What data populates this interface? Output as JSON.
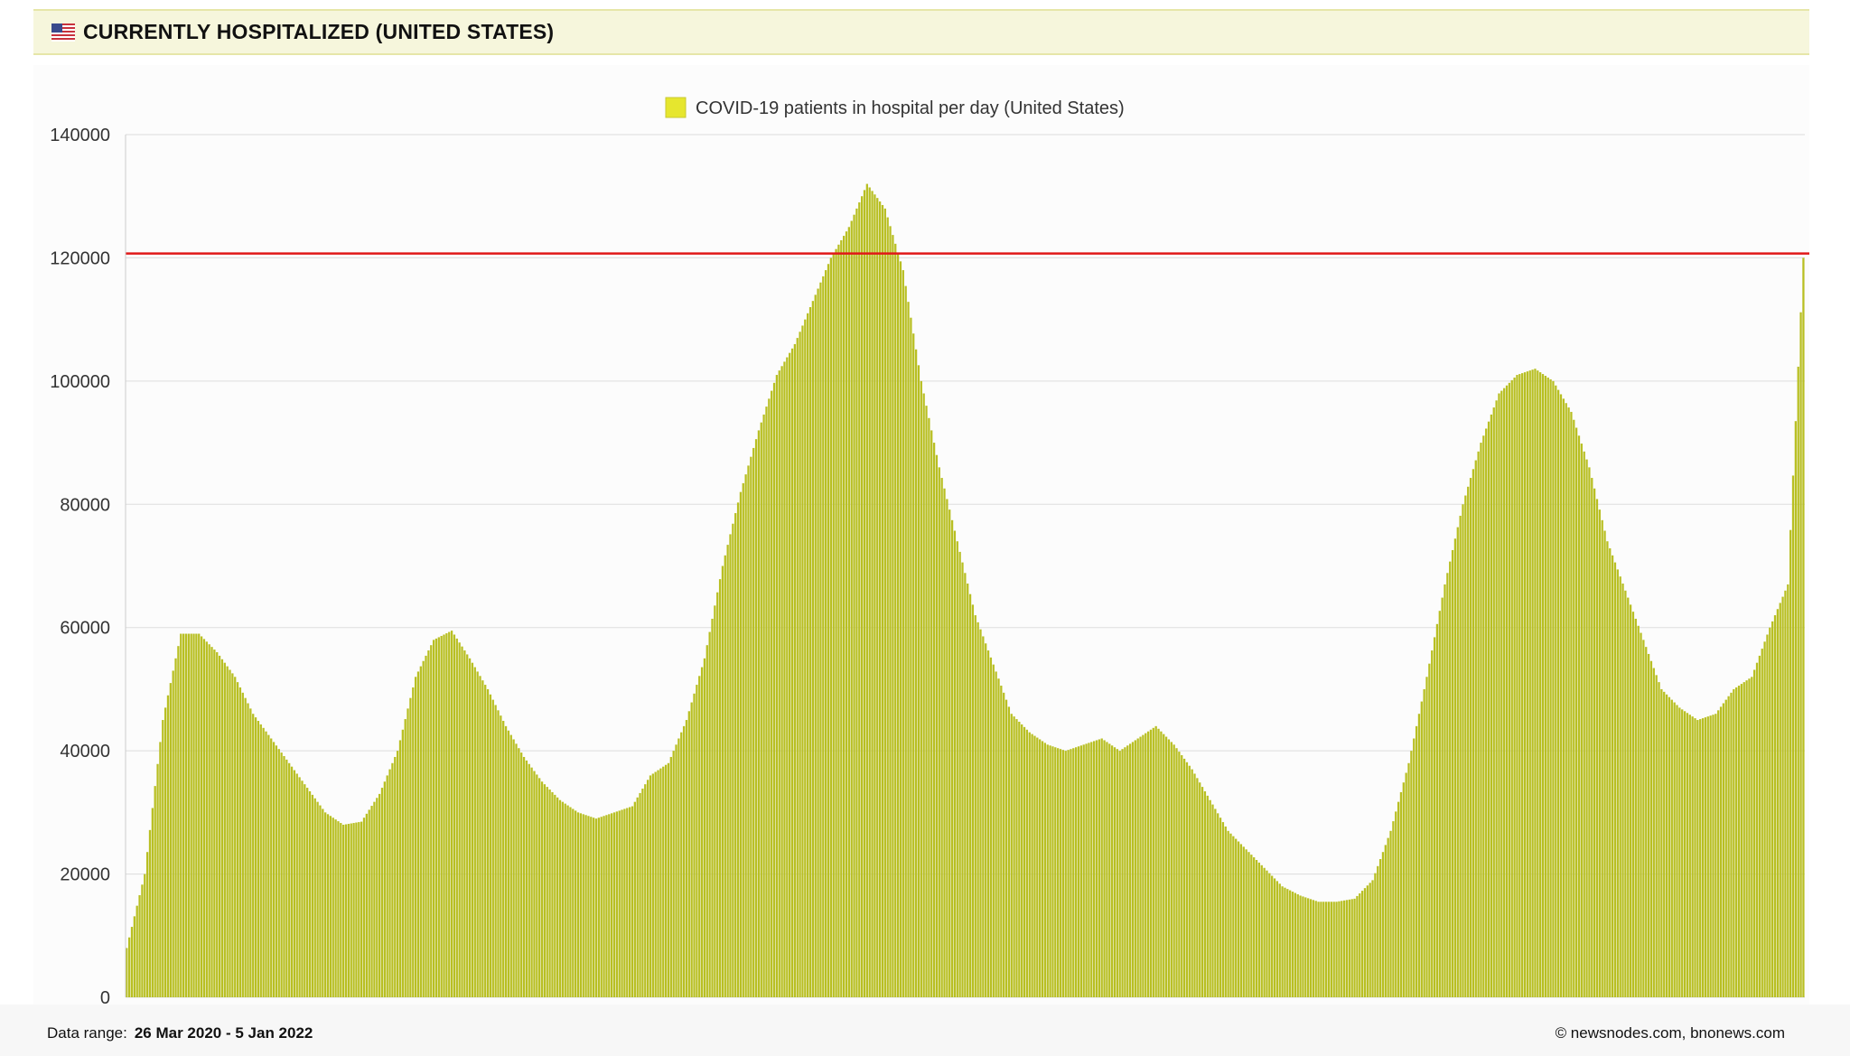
{
  "header": {
    "title": "CURRENTLY HOSPITALIZED (UNITED STATES)",
    "flag_icon": "us-flag-icon"
  },
  "footer": {
    "range_label": "Data range:",
    "range_value": "26 Mar 2020  -  5 Jan 2022",
    "copyright": "©  newsnodes.com, bnonews.com"
  },
  "colors": {
    "bar": "#b8bf22",
    "legend_swatch": "#e6e62e",
    "reference_line": "#e01818",
    "header_bg": "#f6f6dc"
  },
  "chart_data": {
    "type": "bar",
    "legend": "COVID-19 patients in hospital per day (United States)",
    "x_start": "2020-03-26",
    "x_end": "2022-01-05",
    "ylim": [
      0,
      140000
    ],
    "yticks": [
      0,
      20000,
      40000,
      60000,
      80000,
      100000,
      120000,
      140000
    ],
    "grid": true,
    "legend_position": "top-center",
    "reference_line": 120700,
    "series": [
      {
        "name": "COVID-19 patients in hospital per day (United States)",
        "dates": [
          "2020-03-26",
          "2020-04-02",
          "2020-04-09",
          "2020-04-16",
          "2020-04-23",
          "2020-04-30",
          "2020-05-07",
          "2020-05-14",
          "2020-05-21",
          "2020-05-28",
          "2020-06-04",
          "2020-06-11",
          "2020-06-18",
          "2020-06-25",
          "2020-07-02",
          "2020-07-09",
          "2020-07-16",
          "2020-07-23",
          "2020-07-30",
          "2020-08-06",
          "2020-08-13",
          "2020-08-20",
          "2020-08-27",
          "2020-09-03",
          "2020-09-10",
          "2020-09-17",
          "2020-09-24",
          "2020-10-01",
          "2020-10-08",
          "2020-10-15",
          "2020-10-22",
          "2020-10-29",
          "2020-11-05",
          "2020-11-12",
          "2020-11-19",
          "2020-11-26",
          "2020-12-03",
          "2020-12-10",
          "2020-12-17",
          "2020-12-24",
          "2020-12-31",
          "2021-01-07",
          "2021-01-14",
          "2021-01-21",
          "2021-01-28",
          "2021-02-04",
          "2021-02-11",
          "2021-02-18",
          "2021-02-25",
          "2021-03-04",
          "2021-03-11",
          "2021-03-18",
          "2021-03-25",
          "2021-04-01",
          "2021-04-08",
          "2021-04-15",
          "2021-04-22",
          "2021-04-29",
          "2021-05-06",
          "2021-05-13",
          "2021-05-20",
          "2021-05-27",
          "2021-06-03",
          "2021-06-10",
          "2021-06-17",
          "2021-06-24",
          "2021-07-01",
          "2021-07-08",
          "2021-07-15",
          "2021-07-22",
          "2021-07-29",
          "2021-08-05",
          "2021-08-12",
          "2021-08-19",
          "2021-08-26",
          "2021-09-02",
          "2021-09-09",
          "2021-09-16",
          "2021-09-23",
          "2021-09-30",
          "2021-10-07",
          "2021-10-14",
          "2021-10-21",
          "2021-10-28",
          "2021-11-04",
          "2021-11-11",
          "2021-11-18",
          "2021-11-25",
          "2021-12-02",
          "2021-12-09",
          "2021-12-16",
          "2021-12-23",
          "2021-12-30",
          "2022-01-05"
        ],
        "values": [
          8000,
          20000,
          45000,
          59000,
          59000,
          56000,
          52000,
          46000,
          42000,
          38000,
          34000,
          30000,
          28000,
          28500,
          33000,
          40000,
          52000,
          58000,
          59500,
          55000,
          50000,
          44000,
          39000,
          35000,
          32000,
          30000,
          29000,
          30000,
          31000,
          36000,
          38000,
          45000,
          55000,
          70000,
          82000,
          92000,
          101000,
          106000,
          113000,
          120000,
          125000,
          132000,
          128000,
          118000,
          100000,
          86000,
          74000,
          62000,
          54000,
          46000,
          43000,
          41000,
          40000,
          41000,
          42000,
          40000,
          42000,
          44000,
          41000,
          37000,
          32000,
          27000,
          24000,
          21000,
          18000,
          16500,
          15500,
          15500,
          16000,
          19000,
          27000,
          38000,
          52000,
          67000,
          80000,
          90000,
          98000,
          101000,
          102000,
          100000,
          95000,
          86000,
          74000,
          66000,
          58000,
          50000,
          47000,
          45000,
          46000,
          50000,
          52000,
          60000,
          67000,
          120000
        ]
      }
    ]
  }
}
